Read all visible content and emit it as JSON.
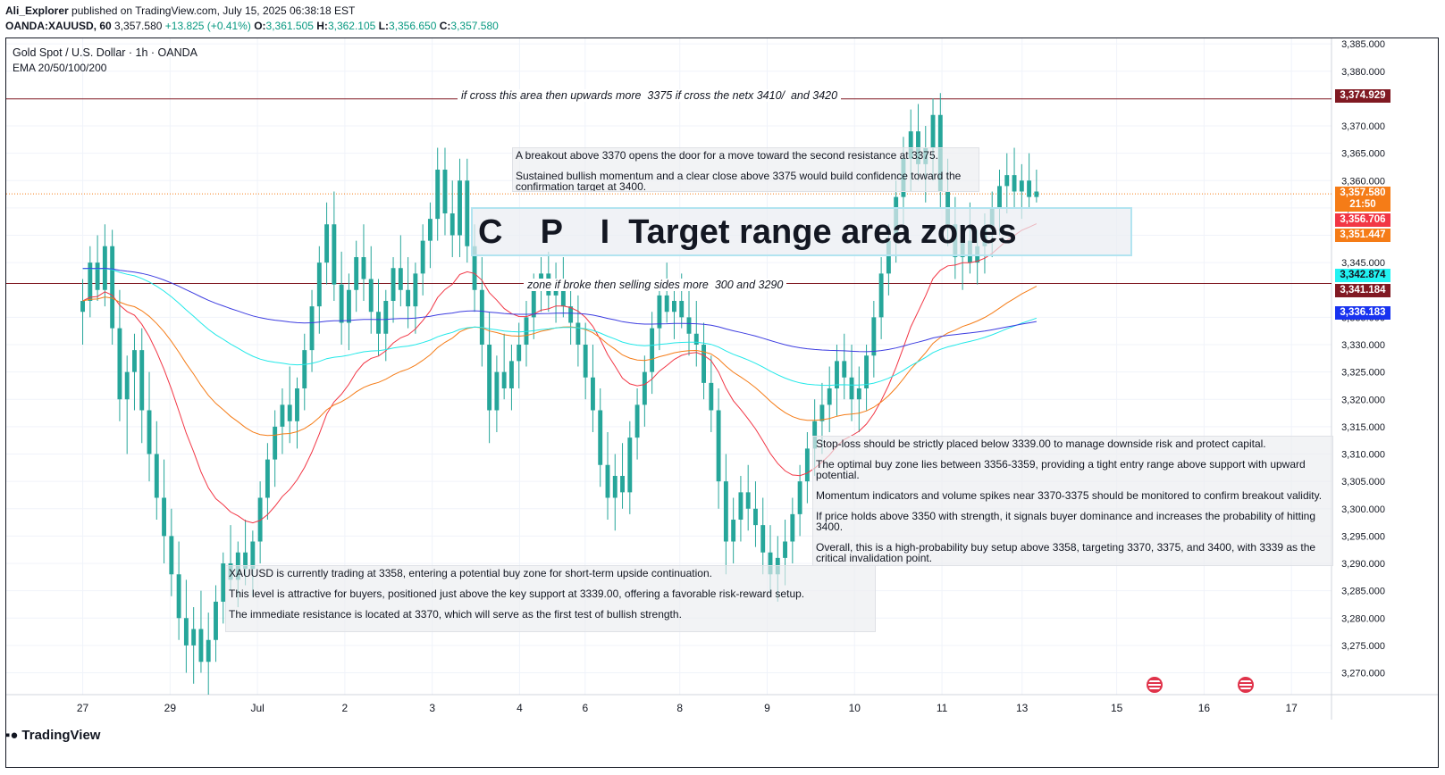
{
  "header": {
    "author": "Ali_Explorer",
    "published": "published on TradingView.com, July 15, 2025 06:38:18 EST"
  },
  "ohlc": {
    "symbol": "OANDA:XAUUSD, 60",
    "last": "3,357.580",
    "change": "+13.825 (+0.41%)",
    "o_label": "O:",
    "o": "3,361.505",
    "h_label": "H:",
    "h": "3,362.105",
    "l_label": "L:",
    "l": "3,356.650",
    "c_label": "C:",
    "c": "3,357.580"
  },
  "legend": {
    "title": "Gold Spot / U.S. Dollar · 1h · OANDA",
    "indicator": "EMA 20/50/100/200"
  },
  "annotations": {
    "resistance_label": "if cross this area then upwards more  3375 if cross the netx 3410/  and 3420",
    "support_label": "zone if broke then selling sides more  300 and 3290",
    "cpi_box": "C    P    I  Target range area zones",
    "note_top": [
      "A breakout above 3370 opens the door for a move toward the second resistance at 3375.",
      "Sustained bullish momentum and a clear close above 3375 would build confidence toward the confirmation target at 3400."
    ],
    "note_right": [
      "Stop-loss should be strictly placed below 3339.00 to manage downside risk and protect capital.",
      "The optimal buy zone lies between 3356-3359, providing a tight entry range above support with upward potential.",
      "Momentum indicators and volume spikes near 3370-3375 should be monitored to confirm breakout validity.",
      "If price holds above 3350 with strength, it signals buyer dominance and increases the probability of hitting 3400.",
      "Overall, this is a high-probability buy setup above 3358, targeting 3370, 3375, and 3400, with 3339 as the critical invalidation point."
    ],
    "note_bottom": [
      "XAUUSD is currently trading at 3358, entering a potential buy zone for short-term upside continuation.",
      "This level is attractive for buyers, positioned just above the key support at 3339.00, offering a favorable risk-reward setup.",
      "The immediate resistance is located at 3370, which will serve as the first test of bullish strength."
    ]
  },
  "price_tags": [
    {
      "value": "3,374.929",
      "color": "#801922"
    },
    {
      "value": "3,357.580",
      "color": "#f57c17"
    },
    {
      "value": "21:50",
      "color": "#f57c17"
    },
    {
      "value": "3,356.706",
      "color": "#f23645"
    },
    {
      "value": "3,351.447",
      "color": "#f57c17"
    },
    {
      "value": "3,342.874",
      "color": "#22f2f2"
    },
    {
      "value": "3,341.184",
      "color": "#801922"
    },
    {
      "value": "3,336.183",
      "color": "#1833f0"
    }
  ],
  "footer": {
    "brand": "TradingView"
  },
  "chart_data": {
    "type": "candlestick",
    "timeframe": "1h",
    "ylim": [
      3266,
      3386
    ],
    "y_ticks": [
      3385,
      3380,
      3370,
      3365,
      3360,
      3355,
      3350,
      3345,
      3335,
      3330,
      3325,
      3320,
      3315,
      3310,
      3305,
      3300,
      3295,
      3290,
      3285,
      3280,
      3275,
      3270
    ],
    "y_tick_labels": [
      "3,385.000",
      "3,380.000",
      "3,370.000",
      "3,365.000",
      "3,360.000",
      "3,355.000",
      "3,350.000",
      "3,345.000",
      "3,335.000",
      "3,330.000",
      "3,325.000",
      "3,320.000",
      "3,315.000",
      "3,310.000",
      "3,305.000",
      "3,300.000",
      "3,295.000",
      "3,290.000",
      "3,285.000",
      "3,280.000",
      "3,275.000",
      "3,270.000"
    ],
    "x_tick_labels": [
      "27",
      "29",
      "Jul",
      "2",
      "3",
      "4",
      "6",
      "8",
      "9",
      "10",
      "11",
      "13",
      "15",
      "16",
      "17"
    ],
    "x_tick_index": [
      10,
      22,
      34,
      46,
      58,
      70,
      79,
      92,
      104,
      116,
      128,
      139,
      152,
      164,
      176
    ],
    "total_slots": 182,
    "horizontal_lines": [
      {
        "value": 3374.929,
        "color": "#801922"
      },
      {
        "value": 3341.184,
        "color": "#801922"
      }
    ],
    "current_price_line": {
      "value": 3357.58,
      "color": "#f57c17",
      "style": "dotted"
    },
    "grid": true,
    "ohlc": [
      [
        3336,
        3342,
        3330,
        3338
      ],
      [
        3338,
        3348,
        3335,
        3345
      ],
      [
        3345,
        3350,
        3338,
        3340
      ],
      [
        3340,
        3352,
        3337,
        3348
      ],
      [
        3348,
        3351,
        3330,
        3333
      ],
      [
        3333,
        3340,
        3316,
        3320
      ],
      [
        3320,
        3328,
        3310,
        3325
      ],
      [
        3325,
        3332,
        3318,
        3329
      ],
      [
        3329,
        3333,
        3312,
        3318
      ],
      [
        3318,
        3325,
        3305,
        3310
      ],
      [
        3310,
        3316,
        3298,
        3302
      ],
      [
        3302,
        3309,
        3290,
        3295
      ],
      [
        3295,
        3300,
        3284,
        3288
      ],
      [
        3288,
        3294,
        3276,
        3280
      ],
      [
        3280,
        3287,
        3270,
        3275
      ],
      [
        3275,
        3282,
        3268,
        3278
      ],
      [
        3278,
        3285,
        3270,
        3272
      ],
      [
        3272,
        3281,
        3266,
        3276
      ],
      [
        3276,
        3286,
        3272,
        3283
      ],
      [
        3283,
        3292,
        3279,
        3290
      ],
      [
        3290,
        3297,
        3285,
        3287
      ],
      [
        3287,
        3294,
        3282,
        3292
      ],
      [
        3292,
        3298,
        3286,
        3289
      ],
      [
        3289,
        3296,
        3284,
        3294
      ],
      [
        3294,
        3305,
        3290,
        3302
      ],
      [
        3302,
        3312,
        3298,
        3309
      ],
      [
        3309,
        3318,
        3304,
        3315
      ],
      [
        3315,
        3322,
        3310,
        3319
      ],
      [
        3319,
        3326,
        3312,
        3316
      ],
      [
        3316,
        3324,
        3311,
        3322
      ],
      [
        3322,
        3332,
        3318,
        3329
      ],
      [
        3329,
        3340,
        3325,
        3337
      ],
      [
        3337,
        3348,
        3332,
        3345
      ],
      [
        3345,
        3356,
        3341,
        3352
      ],
      [
        3352,
        3358,
        3338,
        3341
      ],
      [
        3341,
        3347,
        3330,
        3334
      ],
      [
        3334,
        3343,
        3329,
        3340
      ],
      [
        3340,
        3349,
        3336,
        3346
      ],
      [
        3346,
        3352,
        3338,
        3342
      ],
      [
        3342,
        3348,
        3332,
        3336
      ],
      [
        3336,
        3342,
        3328,
        3332
      ],
      [
        3332,
        3340,
        3327,
        3338
      ],
      [
        3338,
        3346,
        3334,
        3344
      ],
      [
        3344,
        3350,
        3337,
        3340
      ],
      [
        3340,
        3346,
        3333,
        3337
      ],
      [
        3337,
        3345,
        3332,
        3343
      ],
      [
        3343,
        3352,
        3339,
        3349
      ],
      [
        3349,
        3356,
        3344,
        3353
      ],
      [
        3353,
        3366,
        3349,
        3362
      ],
      [
        3362,
        3366,
        3350,
        3354
      ],
      [
        3354,
        3360,
        3346,
        3350
      ],
      [
        3350,
        3364,
        3346,
        3360
      ],
      [
        3360,
        3364,
        3345,
        3348
      ],
      [
        3348,
        3352,
        3336,
        3340
      ],
      [
        3340,
        3346,
        3326,
        3330
      ],
      [
        3330,
        3336,
        3312,
        3318
      ],
      [
        3318,
        3328,
        3314,
        3325
      ],
      [
        3325,
        3332,
        3320,
        3322
      ],
      [
        3322,
        3330,
        3318,
        3327
      ],
      [
        3327,
        3334,
        3322,
        3330
      ],
      [
        3330,
        3338,
        3326,
        3335
      ],
      [
        3335,
        3343,
        3331,
        3340
      ],
      [
        3340,
        3346,
        3336,
        3343
      ],
      [
        3343,
        3347,
        3336,
        3339
      ],
      [
        3339,
        3345,
        3334,
        3342
      ],
      [
        3342,
        3346,
        3335,
        3337
      ],
      [
        3337,
        3341,
        3330,
        3334
      ],
      [
        3334,
        3339,
        3326,
        3330
      ],
      [
        3330,
        3334,
        3320,
        3324
      ],
      [
        3324,
        3330,
        3314,
        3318
      ],
      [
        3318,
        3322,
        3304,
        3308
      ],
      [
        3308,
        3314,
        3298,
        3302
      ],
      [
        3302,
        3310,
        3296,
        3306
      ],
      [
        3306,
        3312,
        3300,
        3303
      ],
      [
        3303,
        3316,
        3299,
        3313
      ],
      [
        3313,
        3322,
        3309,
        3319
      ],
      [
        3319,
        3328,
        3315,
        3325
      ],
      [
        3325,
        3336,
        3321,
        3333
      ],
      [
        3333,
        3342,
        3329,
        3339
      ],
      [
        3339,
        3345,
        3334,
        3336
      ],
      [
        3336,
        3341,
        3331,
        3338
      ],
      [
        3338,
        3343,
        3333,
        3335
      ],
      [
        3335,
        3340,
        3328,
        3332
      ],
      [
        3332,
        3338,
        3326,
        3330
      ],
      [
        3330,
        3334,
        3320,
        3323
      ],
      [
        3323,
        3328,
        3314,
        3318
      ],
      [
        3318,
        3322,
        3300,
        3305
      ],
      [
        3305,
        3310,
        3288,
        3294
      ],
      [
        3294,
        3302,
        3290,
        3298
      ],
      [
        3298,
        3306,
        3294,
        3303
      ],
      [
        3303,
        3308,
        3296,
        3300
      ],
      [
        3300,
        3305,
        3293,
        3297
      ],
      [
        3297,
        3302,
        3288,
        3292
      ],
      [
        3292,
        3297,
        3284,
        3288
      ],
      [
        3288,
        3295,
        3283,
        3291
      ],
      [
        3291,
        3298,
        3286,
        3294
      ],
      [
        3294,
        3302,
        3290,
        3299
      ],
      [
        3299,
        3308,
        3295,
        3305
      ],
      [
        3305,
        3314,
        3301,
        3311
      ],
      [
        3311,
        3320,
        3306,
        3316
      ],
      [
        3316,
        3323,
        3310,
        3319
      ],
      [
        3319,
        3326,
        3314,
        3322
      ],
      [
        3322,
        3330,
        3317,
        3327
      ],
      [
        3327,
        3332,
        3320,
        3324
      ],
      [
        3324,
        3330,
        3316,
        3320
      ],
      [
        3320,
        3326,
        3314,
        3322
      ],
      [
        3322,
        3330,
        3318,
        3328
      ],
      [
        3328,
        3338,
        3324,
        3335
      ],
      [
        3335,
        3346,
        3331,
        3343
      ],
      [
        3343,
        3352,
        3339,
        3349
      ],
      [
        3349,
        3360,
        3345,
        3357
      ],
      [
        3357,
        3368,
        3352,
        3364
      ],
      [
        3364,
        3373,
        3358,
        3369
      ],
      [
        3369,
        3374,
        3360,
        3363
      ],
      [
        3363,
        3370,
        3356,
        3366
      ],
      [
        3366,
        3375,
        3360,
        3372
      ],
      [
        3372,
        3376,
        3355,
        3358
      ],
      [
        3358,
        3364,
        3348,
        3352
      ],
      [
        3352,
        3357,
        3342,
        3346
      ],
      [
        3346,
        3352,
        3340,
        3349
      ],
      [
        3349,
        3356,
        3343,
        3345
      ],
      [
        3345,
        3351,
        3341,
        3348
      ],
      [
        3348,
        3354,
        3343,
        3351
      ],
      [
        3351,
        3358,
        3346,
        3355
      ],
      [
        3355,
        3362,
        3350,
        3359
      ],
      [
        3359,
        3365,
        3354,
        3361
      ],
      [
        3361,
        3366,
        3355,
        3358
      ],
      [
        3358,
        3363,
        3353,
        3360
      ],
      [
        3360,
        3365,
        3355,
        3357
      ],
      [
        3357,
        3362,
        3356,
        3358
      ]
    ],
    "ema_series": [
      {
        "name": "EMA 20",
        "color": "#f23645",
        "period": 20
      },
      {
        "name": "EMA 50",
        "color": "#f57c17",
        "period": 50
      },
      {
        "name": "EMA 100",
        "color": "#22e8e8",
        "period": 100
      },
      {
        "name": "EMA 200",
        "color": "#3c3ce0",
        "period": 200
      }
    ],
    "candle_colors": {
      "up": "#26a69a",
      "down": "#26a69a"
    }
  }
}
